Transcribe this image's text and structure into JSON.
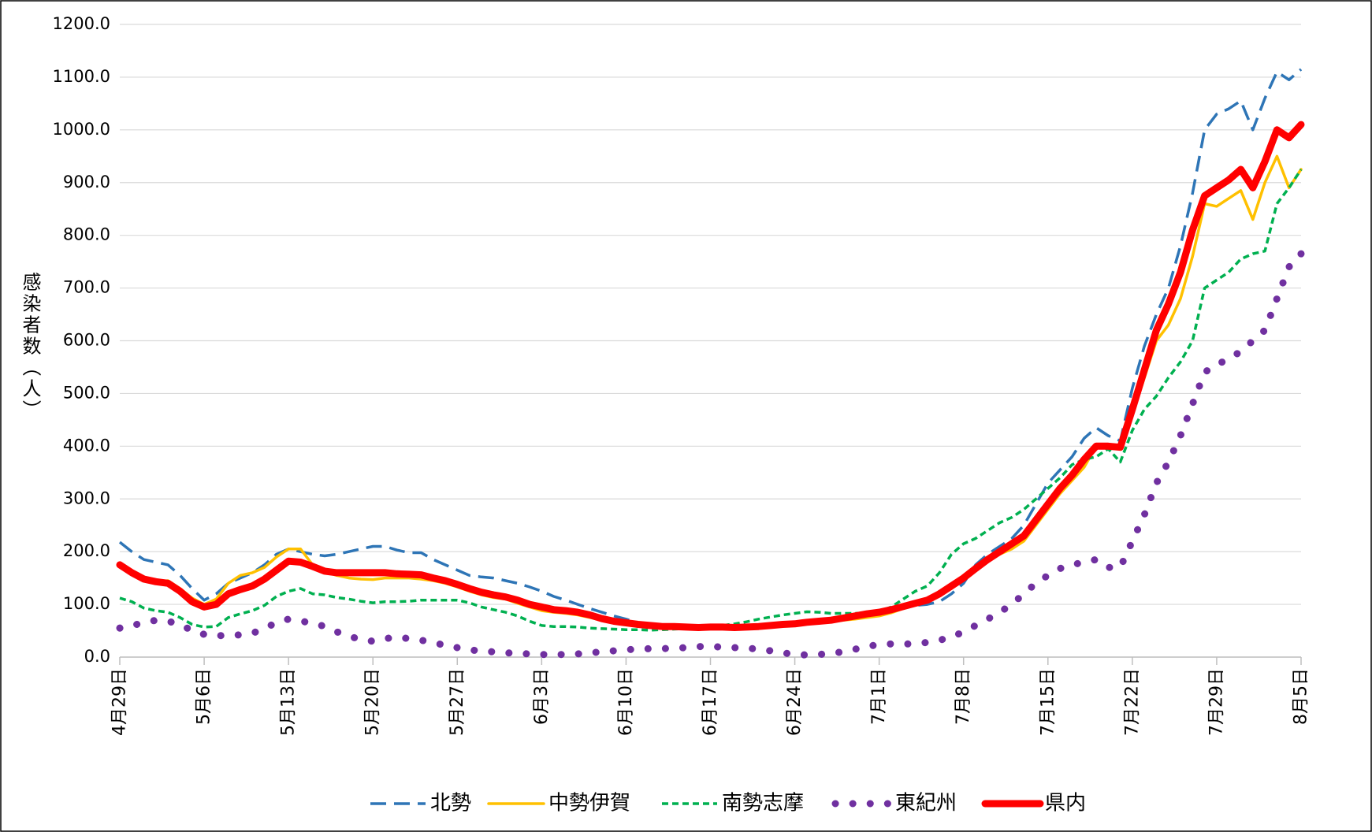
{
  "chart_data": {
    "type": "line",
    "ylabel": "感染者数（人）",
    "categories": [
      "4月29日",
      null,
      null,
      null,
      null,
      null,
      null,
      "5月6日",
      null,
      null,
      null,
      null,
      null,
      null,
      "5月13日",
      null,
      null,
      null,
      null,
      null,
      null,
      "5月20日",
      null,
      null,
      null,
      null,
      null,
      null,
      "5月27日",
      null,
      null,
      null,
      null,
      null,
      null,
      "6月3日",
      null,
      null,
      null,
      null,
      null,
      null,
      "6月10日",
      null,
      null,
      null,
      null,
      null,
      null,
      "6月17日",
      null,
      null,
      null,
      null,
      null,
      null,
      "6月24日",
      null,
      null,
      null,
      null,
      null,
      null,
      "7月1日",
      null,
      null,
      null,
      null,
      null,
      null,
      "7月8日",
      null,
      null,
      null,
      null,
      null,
      null,
      "7月15日",
      null,
      null,
      null,
      null,
      null,
      null,
      "7月22日",
      null,
      null,
      null,
      null,
      null,
      null,
      "7月29日",
      null,
      null,
      null,
      null,
      null,
      null,
      "8月5日"
    ],
    "ylim": [
      0,
      1200
    ],
    "yticks": [
      {
        "value": 0,
        "label": "0.0"
      },
      {
        "value": 100,
        "label": "100.0"
      },
      {
        "value": 200,
        "label": "200.0"
      },
      {
        "value": 300,
        "label": "300.0"
      },
      {
        "value": 400,
        "label": "400.0"
      },
      {
        "value": 500,
        "label": "500.0"
      },
      {
        "value": 600,
        "label": "600.0"
      },
      {
        "value": 700,
        "label": "700.0"
      },
      {
        "value": 800,
        "label": "800.0"
      },
      {
        "value": 900,
        "label": "900.0"
      },
      {
        "value": 1000,
        "label": "1000.0"
      },
      {
        "value": 1100,
        "label": "1100.0"
      },
      {
        "value": 1200,
        "label": "1200.0"
      }
    ],
    "grid": true,
    "legend": "bottom",
    "series": [
      {
        "name": "北勢",
        "color": "#2e75b6",
        "style": "dashed",
        "values": [
          218,
          200,
          185,
          180,
          175,
          155,
          130,
          108,
          120,
          140,
          150,
          160,
          175,
          195,
          205,
          200,
          195,
          192,
          195,
          200,
          205,
          210,
          210,
          203,
          198,
          198,
          185,
          175,
          165,
          155,
          152,
          150,
          145,
          140,
          133,
          125,
          115,
          108,
          100,
          92,
          85,
          78,
          72,
          65,
          62,
          60,
          58,
          56,
          55,
          54,
          55,
          56,
          57,
          58,
          60,
          62,
          63,
          65,
          67,
          70,
          73,
          77,
          80,
          85,
          90,
          95,
          98,
          100,
          105,
          120,
          140,
          175,
          195,
          210,
          225,
          250,
          290,
          330,
          355,
          380,
          415,
          435,
          420,
          410,
          510,
          590,
          650,
          700,
          780,
          880,
          1000,
          1030,
          1040,
          1055,
          1000,
          1060,
          1110,
          1095,
          1115
        ]
      },
      {
        "name": "中勢伊賀",
        "color": "#ffc000",
        "style": "solid",
        "values": [
          175,
          160,
          148,
          143,
          145,
          130,
          112,
          100,
          110,
          140,
          155,
          160,
          170,
          190,
          205,
          205,
          175,
          162,
          155,
          150,
          148,
          147,
          150,
          150,
          150,
          148,
          145,
          140,
          133,
          125,
          118,
          113,
          110,
          102,
          95,
          88,
          85,
          83,
          80,
          75,
          70,
          65,
          62,
          60,
          58,
          57,
          56,
          56,
          55,
          56,
          56,
          55,
          56,
          57,
          58,
          60,
          62,
          64,
          66,
          68,
          70,
          72,
          75,
          78,
          84,
          92,
          100,
          105,
          118,
          130,
          150,
          170,
          185,
          195,
          205,
          220,
          250,
          280,
          310,
          335,
          360,
          400,
          400,
          395,
          460,
          530,
          600,
          630,
          680,
          760,
          860,
          855,
          870,
          885,
          830,
          900,
          950,
          890,
          925
        ]
      },
      {
        "name": "南勢志摩",
        "color": "#00b050",
        "style": "shortdash",
        "values": [
          112,
          105,
          93,
          88,
          85,
          75,
          62,
          57,
          58,
          75,
          82,
          88,
          98,
          115,
          125,
          130,
          120,
          118,
          113,
          110,
          106,
          103,
          105,
          105,
          106,
          108,
          108,
          108,
          108,
          103,
          95,
          90,
          85,
          78,
          68,
          60,
          58,
          58,
          57,
          55,
          54,
          53,
          52,
          52,
          51,
          52,
          53,
          54,
          55,
          57,
          60,
          63,
          67,
          72,
          76,
          80,
          83,
          86,
          85,
          83,
          83,
          83,
          84,
          86,
          95,
          110,
          125,
          135,
          160,
          195,
          215,
          225,
          240,
          255,
          265,
          280,
          300,
          320,
          340,
          365,
          375,
          380,
          395,
          370,
          430,
          470,
          495,
          530,
          560,
          600,
          700,
          715,
          730,
          755,
          765,
          770,
          860,
          890,
          925
        ]
      },
      {
        "name": "東紀州",
        "color": "#7030a0",
        "style": "dotted",
        "values": [
          55,
          60,
          65,
          70,
          68,
          62,
          50,
          43,
          40,
          42,
          42,
          45,
          55,
          65,
          72,
          68,
          65,
          58,
          48,
          40,
          33,
          30,
          35,
          38,
          35,
          32,
          28,
          22,
          18,
          14,
          11,
          10,
          8,
          7,
          6,
          5,
          5,
          5,
          6,
          8,
          10,
          12,
          14,
          15,
          16,
          16,
          17,
          18,
          20,
          20,
          19,
          18,
          17,
          15,
          12,
          8,
          5,
          4,
          5,
          7,
          10,
          15,
          20,
          24,
          25,
          25,
          25,
          28,
          32,
          38,
          48,
          60,
          72,
          85,
          100,
          120,
          140,
          155,
          168,
          175,
          180,
          185,
          170,
          170,
          220,
          270,
          330,
          370,
          420,
          480,
          540,
          555,
          565,
          580,
          600,
          620,
          680,
          740,
          765
        ]
      },
      {
        "name": "県内",
        "color": "#ff0000",
        "style": "thick",
        "values": [
          175,
          160,
          148,
          143,
          140,
          125,
          105,
          95,
          100,
          120,
          128,
          135,
          148,
          165,
          182,
          180,
          172,
          163,
          160,
          160,
          160,
          160,
          160,
          158,
          157,
          156,
          150,
          145,
          138,
          130,
          123,
          118,
          114,
          108,
          100,
          95,
          90,
          88,
          85,
          80,
          73,
          68,
          65,
          62,
          60,
          58,
          58,
          57,
          56,
          57,
          57,
          56,
          57,
          58,
          60,
          62,
          63,
          66,
          68,
          70,
          74,
          78,
          82,
          85,
          90,
          96,
          102,
          108,
          120,
          135,
          150,
          168,
          185,
          200,
          215,
          230,
          260,
          290,
          320,
          345,
          375,
          400,
          400,
          398,
          470,
          545,
          620,
          670,
          730,
          810,
          875,
          890,
          905,
          925,
          890,
          940,
          1000,
          985,
          1010
        ]
      }
    ]
  }
}
